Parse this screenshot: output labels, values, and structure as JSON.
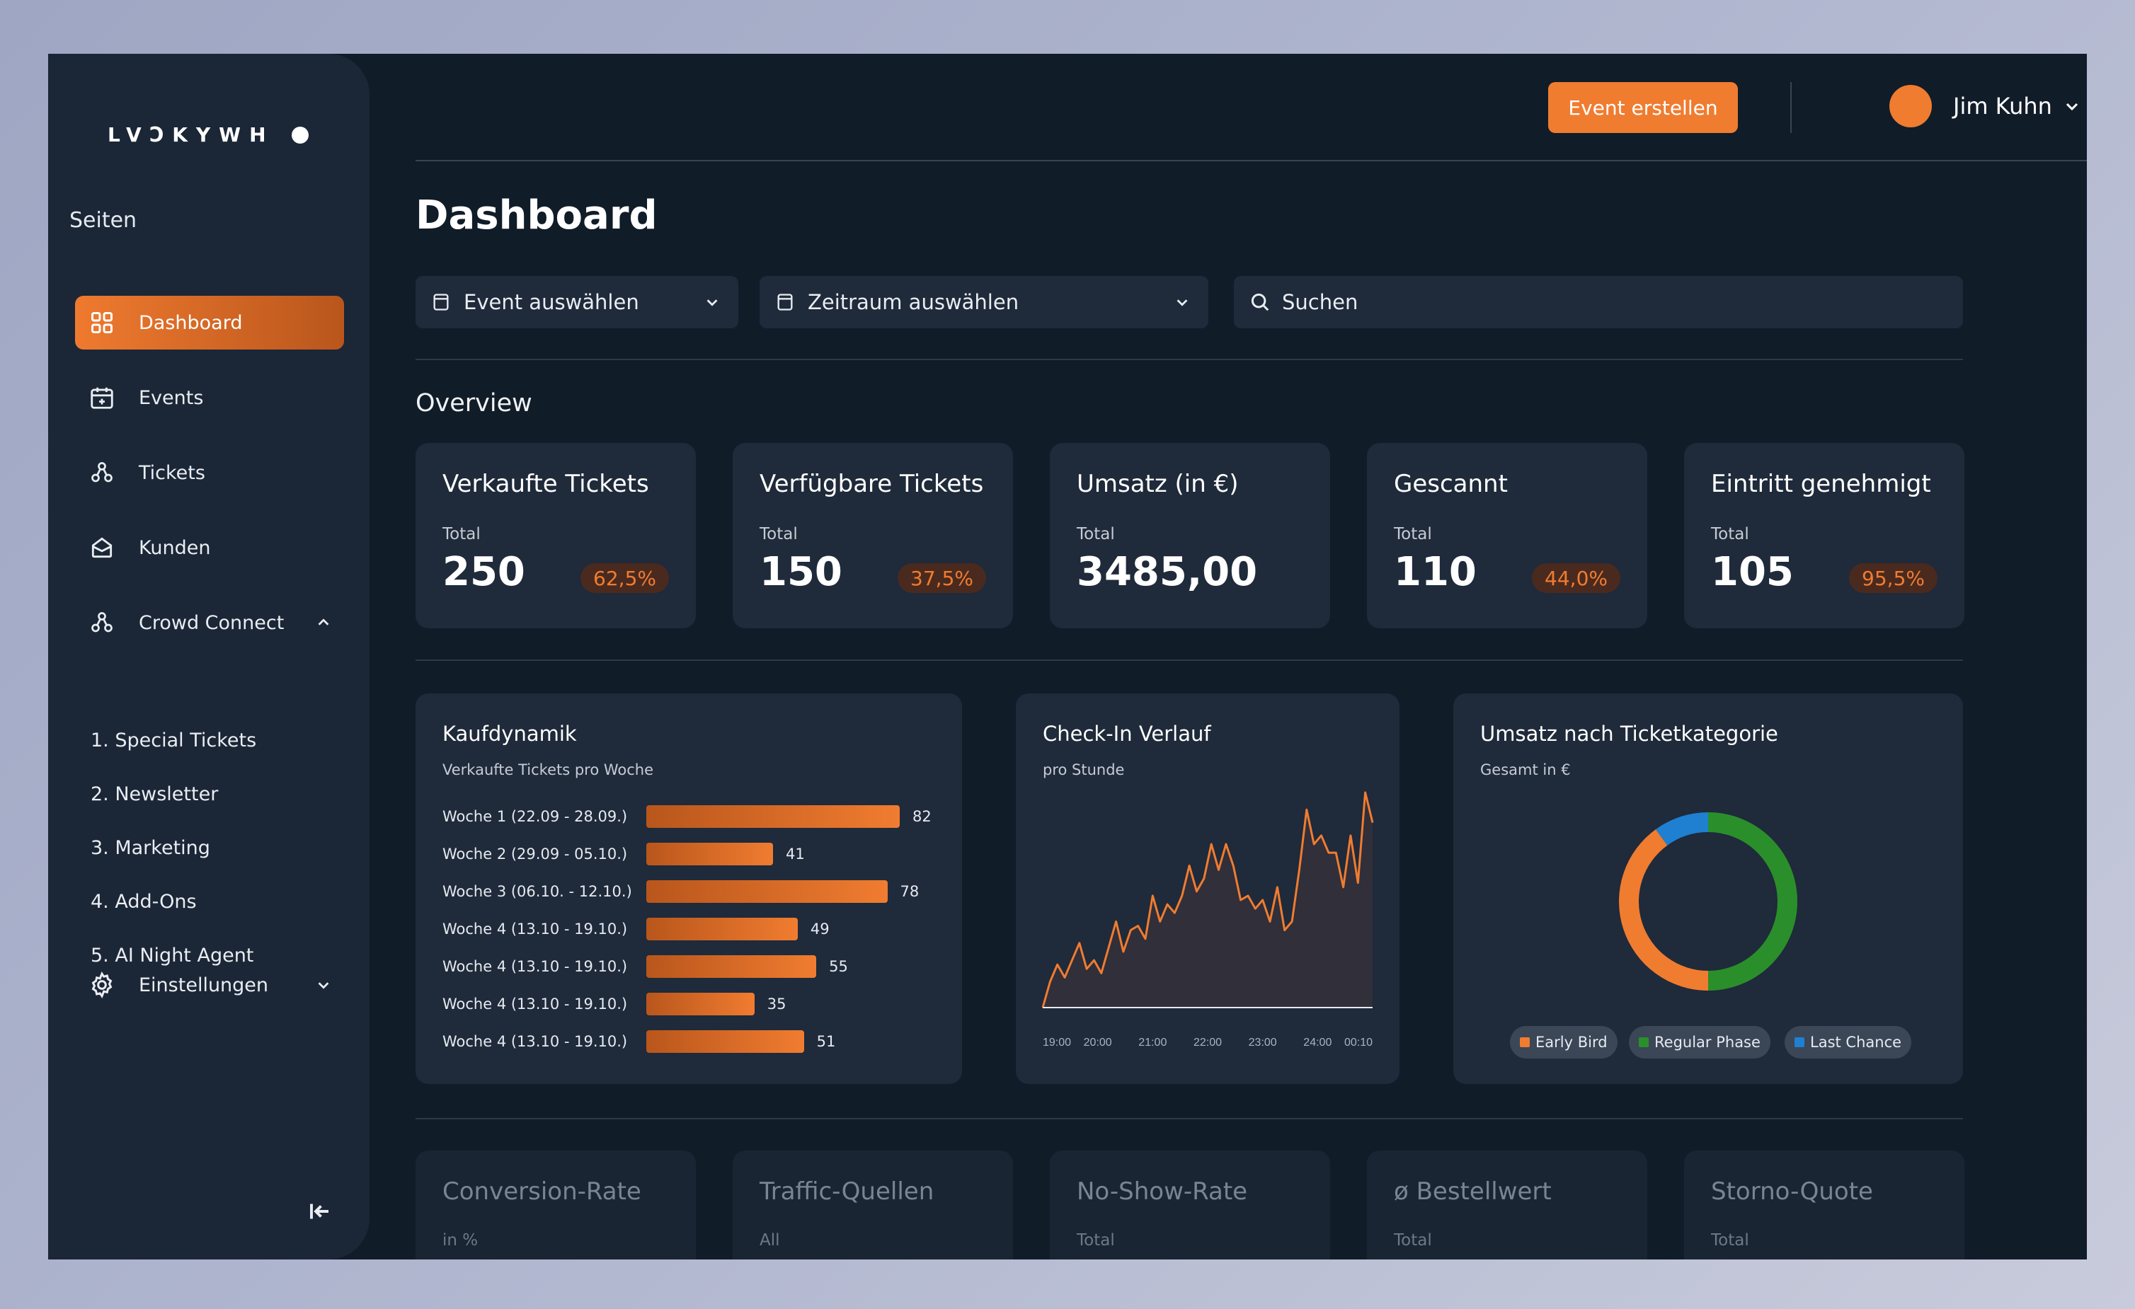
{
  "brand": {
    "logo_text": "LVϽKYWH"
  },
  "sidebar": {
    "section_title": "Seiten",
    "items": [
      {
        "label": "Dashboard",
        "icon": "dashboard-grid-icon",
        "active": true
      },
      {
        "label": "Events",
        "icon": "calendar-icon"
      },
      {
        "label": "Tickets",
        "icon": "network-icon"
      },
      {
        "label": "Kunden",
        "icon": "inbox-icon"
      },
      {
        "label": "Crowd Connect",
        "icon": "network-icon",
        "expanded": true
      },
      {
        "label": "Einstellungen",
        "icon": "gear-icon",
        "expanded": false
      }
    ],
    "sub_items": [
      "1. Special Tickets",
      "2. Newsletter",
      "3. Marketing",
      "4. Add-Ons",
      "5. AI Night Agent"
    ]
  },
  "header": {
    "create_button": "Event erstellen",
    "user_name": "Jim Kuhn"
  },
  "page": {
    "title": "Dashboard",
    "filters": {
      "event": "Event auswählen",
      "period": "Zeitraum auswählen",
      "search_placeholder": "Suchen"
    },
    "overview_title": "Overview"
  },
  "kpis": [
    {
      "title": "Verkaufte Tickets",
      "sub": "Total",
      "value": "250",
      "badge": "62,5%"
    },
    {
      "title": "Verfügbare Tickets",
      "sub": "Total",
      "value": "150",
      "badge": "37,5%"
    },
    {
      "title": "Umsatz (in €)",
      "sub": "Total",
      "value": "3485,00",
      "badge": ""
    },
    {
      "title": "Gescannt",
      "sub": "Total",
      "value": "110",
      "badge": "44,0%"
    },
    {
      "title": "Eintritt genehmigt",
      "sub": "Total",
      "value": "105",
      "badge": "95,5%"
    }
  ],
  "kpis_secondary": [
    {
      "title": "Conversion-Rate",
      "sub": "in %"
    },
    {
      "title": "Traffic-Quellen",
      "sub": "All"
    },
    {
      "title": "No-Show-Rate",
      "sub": "Total"
    },
    {
      "title": "ø Bestellwert",
      "sub": "Total"
    },
    {
      "title": "Storno-Quote",
      "sub": "Total"
    }
  ],
  "colors": {
    "accent": "#f07c30",
    "early_bird": "#f07c30",
    "regular_phase": "#2a8f2a",
    "last_chance": "#1f7fd0"
  },
  "chart_data": [
    {
      "type": "bar",
      "title": "Kaufdynamik",
      "subtitle": "Verkaufte Tickets pro Woche",
      "orientation": "horizontal",
      "categories": [
        "Woche 1 (22.09 - 28.09.)",
        "Woche 2 (29.09 - 05.10.)",
        "Woche 3 (06.10. - 12.10.)",
        "Woche 4 (13.10 - 19.10.)",
        "Woche 4 (13.10 - 19.10.)",
        "Woche 4 (13.10 - 19.10.)",
        "Woche 4 (13.10 - 19.10.)"
      ],
      "values": [
        82,
        41,
        78,
        49,
        55,
        35,
        51
      ]
    },
    {
      "type": "area",
      "title": "Check-In Verlauf",
      "subtitle": "pro Stunde",
      "x_ticks": [
        "19:00",
        "20:00",
        "21:00",
        "22:00",
        "23:00",
        "24:00",
        "00:10"
      ],
      "values": [
        0,
        12,
        20,
        14,
        22,
        30,
        18,
        22,
        16,
        28,
        40,
        26,
        36,
        38,
        32,
        52,
        40,
        48,
        44,
        52,
        66,
        54,
        60,
        76,
        64,
        76,
        66,
        50,
        52,
        46,
        50,
        40,
        56,
        36,
        40,
        64,
        92,
        76,
        80,
        72,
        72,
        56,
        80,
        58,
        100,
        86
      ]
    },
    {
      "type": "pie",
      "title": "Umsatz nach Ticketkategorie",
      "subtitle": "Gesamt in €",
      "donut": true,
      "labels": [
        "Early Bird",
        "Regular Phase",
        "Last Chance"
      ],
      "values": [
        40,
        50,
        10
      ]
    }
  ]
}
